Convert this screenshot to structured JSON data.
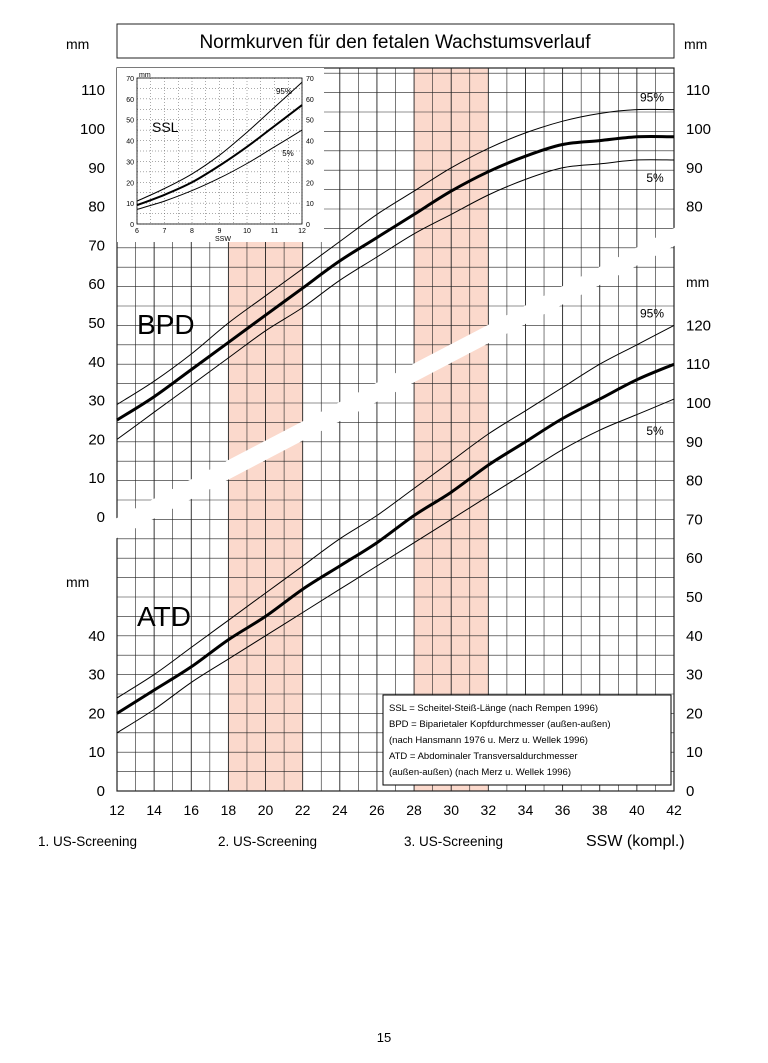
{
  "title": "Normkurven für den fetalen Wachstumsverlauf",
  "unit_label": "mm",
  "page_number": "15",
  "colors": {
    "screening_band": "#fbd9cc",
    "grid": "#222222",
    "curve": "#000000",
    "background": "#ffffff"
  },
  "screenings": [
    {
      "label": "1. US-Screening"
    },
    {
      "label": "2. US-Screening",
      "from_ssw": 18,
      "to_ssw": 22
    },
    {
      "label": "3. US-Screening",
      "from_ssw": 28,
      "to_ssw": 32
    }
  ],
  "legend_lines": [
    "SSL  = Scheitel-Steiß-Länge (nach Rempen 1996)",
    "BPD  = Biparietaler Kopfdurchmesser (außen-außen)",
    "           (nach Hansmann 1976 u. Merz u. Wellek 1996)",
    "ATD  = Abdominaler Transversaldurchmesser",
    "           (außen-außen) (nach Merz u. Wellek 1996)"
  ],
  "chart_data": [
    {
      "type": "line",
      "name": "main",
      "xlabel": "SSW (kompl.)",
      "xlim": [
        12,
        42
      ],
      "x_ticks": [
        12,
        14,
        16,
        18,
        20,
        22,
        24,
        26,
        28,
        30,
        32,
        34,
        36,
        38,
        40,
        42
      ],
      "grid": true,
      "panels": [
        {
          "label": "BPD",
          "unit": "mm",
          "ylim": [
            0,
            110
          ],
          "left_ticks": [
            0,
            10,
            20,
            30,
            40,
            50,
            60,
            70,
            80,
            90,
            100,
            110
          ],
          "right_ticks": [
            80,
            90,
            100,
            110
          ],
          "series": [
            {
              "name": "95%",
              "width": 1,
              "x": [
                12,
                14,
                16,
                18,
                20,
                22,
                24,
                26,
                28,
                30,
                32,
                34,
                36,
                38,
                40,
                42
              ],
              "y": [
                29,
                35,
                42,
                50,
                57,
                64,
                71,
                78,
                84,
                90,
                95,
                99,
                102,
                104,
                105,
                105
              ]
            },
            {
              "name": "50%",
              "width": 3,
              "x": [
                12,
                14,
                16,
                18,
                20,
                22,
                24,
                26,
                28,
                30,
                32,
                34,
                36,
                38,
                40,
                42
              ],
              "y": [
                25,
                31,
                38,
                45,
                52,
                59,
                66,
                72,
                78,
                84,
                89,
                93,
                96,
                97,
                98,
                98
              ]
            },
            {
              "name": "5%",
              "width": 1,
              "x": [
                12,
                14,
                16,
                18,
                20,
                22,
                24,
                26,
                28,
                30,
                32,
                34,
                36,
                38,
                40,
                42
              ],
              "y": [
                20,
                27,
                34,
                41,
                48,
                54,
                61,
                67,
                73,
                78,
                83,
                87,
                90,
                91,
                92,
                92
              ]
            }
          ]
        },
        {
          "label": "ATD",
          "unit": "mm",
          "ylim": [
            0,
            50
          ],
          "left_ticks": [
            0,
            10,
            20,
            30,
            40
          ],
          "right_unit": "mm",
          "right_ylim": [
            0,
            120
          ],
          "right_ticks": [
            0,
            10,
            20,
            30,
            40,
            50,
            60,
            70,
            80,
            90,
            100,
            110,
            120
          ],
          "series": [
            {
              "name": "95%",
              "width": 1,
              "x": [
                12,
                14,
                16,
                18,
                20,
                22,
                24,
                26,
                28,
                30,
                32,
                34,
                36,
                38,
                40,
                42
              ],
              "y": [
                24,
                30,
                37,
                44,
                51,
                58,
                65,
                71,
                78,
                85,
                92,
                98,
                104,
                110,
                115,
                120
              ]
            },
            {
              "name": "50%",
              "width": 3,
              "x": [
                12,
                14,
                16,
                18,
                20,
                22,
                24,
                26,
                28,
                30,
                32,
                34,
                36,
                38,
                40,
                42
              ],
              "y": [
                20,
                26,
                32,
                39,
                45,
                52,
                58,
                64,
                71,
                77,
                84,
                90,
                96,
                101,
                106,
                110
              ]
            },
            {
              "name": "5%",
              "width": 1,
              "x": [
                12,
                14,
                16,
                18,
                20,
                22,
                24,
                26,
                28,
                30,
                32,
                34,
                36,
                38,
                40,
                42
              ],
              "y": [
                15,
                21,
                28,
                34,
                40,
                46,
                52,
                58,
                64,
                70,
                76,
                82,
                88,
                93,
                97,
                101
              ]
            }
          ]
        }
      ]
    },
    {
      "type": "line",
      "name": "inset",
      "label": "SSL",
      "xlabel": "SSW",
      "unit": "mm",
      "xlim": [
        6,
        12
      ],
      "x_ticks": [
        6,
        7,
        8,
        9,
        10,
        11,
        12
      ],
      "ylim": [
        0,
        70
      ],
      "y_ticks": [
        0,
        10,
        20,
        30,
        40,
        50,
        60,
        70
      ],
      "grid": true,
      "series": [
        {
          "name": "95%",
          "width": 1,
          "x": [
            6,
            7,
            8,
            9,
            10,
            11,
            12
          ],
          "y": [
            11,
            17,
            24,
            33,
            44,
            56,
            68
          ]
        },
        {
          "name": "50%",
          "width": 2,
          "x": [
            6,
            7,
            8,
            9,
            10,
            11,
            12
          ],
          "y": [
            9,
            14,
            20,
            28,
            37,
            47,
            57
          ]
        },
        {
          "name": "5%",
          "width": 1,
          "x": [
            6,
            7,
            8,
            9,
            10,
            11,
            12
          ],
          "y": [
            7,
            11,
            16,
            22,
            29,
            37,
            45
          ]
        }
      ]
    }
  ]
}
